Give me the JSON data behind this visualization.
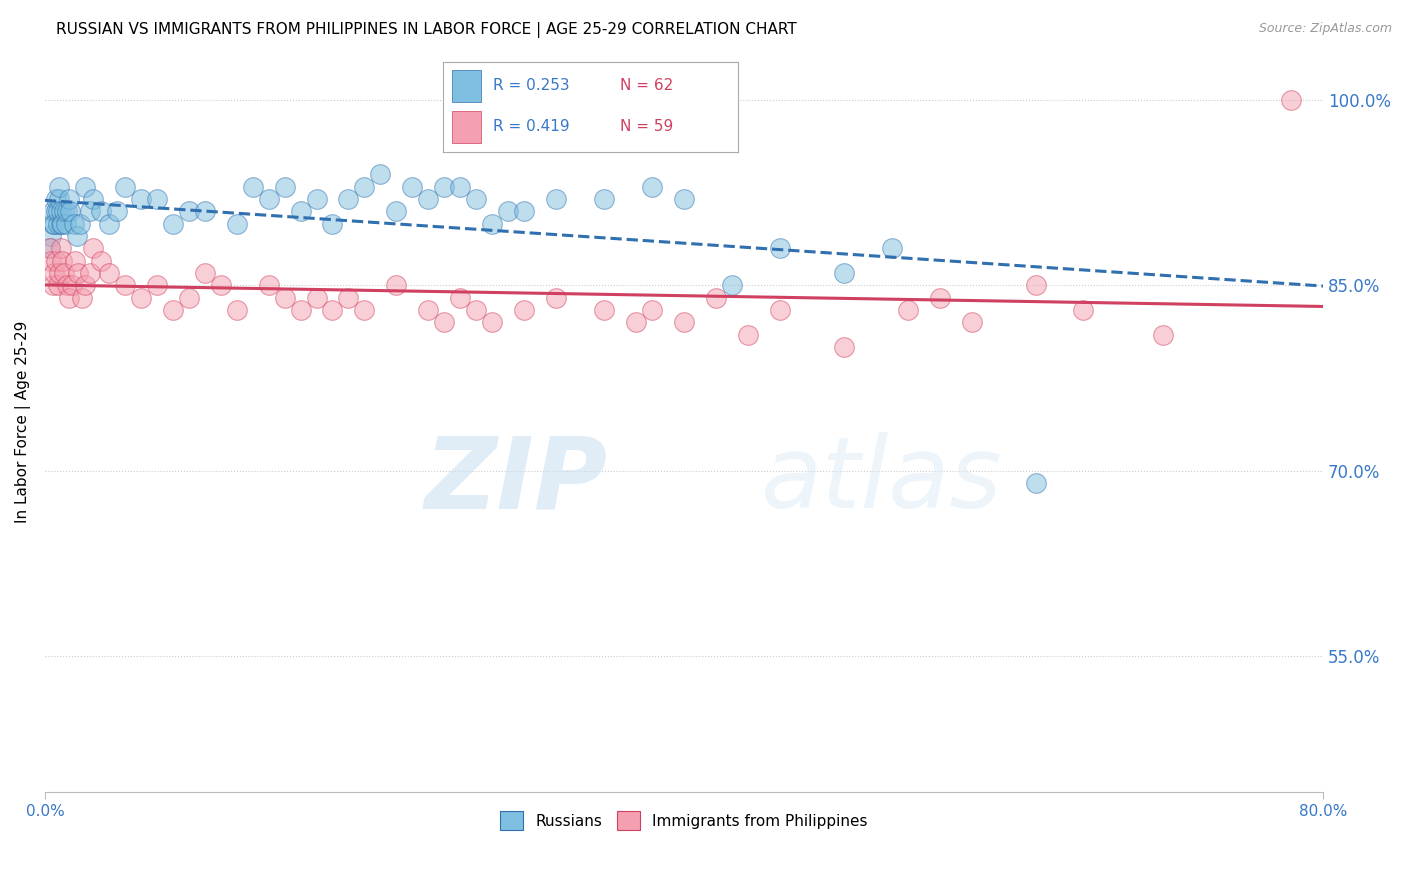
{
  "title": "RUSSIAN VS IMMIGRANTS FROM PHILIPPINES IN LABOR FORCE | AGE 25-29 CORRELATION CHART",
  "source": "Source: ZipAtlas.com",
  "ylabel": "In Labor Force | Age 25-29",
  "yticks": [
    55.0,
    70.0,
    85.0,
    100.0
  ],
  "ytick_labels": [
    "55.0%",
    "70.0%",
    "85.0%",
    "100.0%"
  ],
  "xmin": 0.0,
  "xmax": 80.0,
  "ymin": 44.0,
  "ymax": 104.0,
  "legend_r1": "R = 0.253",
  "legend_n1": "N = 62",
  "legend_r2": "R = 0.419",
  "legend_n2": "N = 59",
  "legend_label1": "Russians",
  "legend_label2": "Immigrants from Philippines",
  "blue_color": "#7fbfdf",
  "pink_color": "#f4a0b0",
  "blue_line_color": "#3070b0",
  "pink_line_color": "#d04060",
  "watermark_zip": "ZIP",
  "watermark_atlas": "atlas",
  "blue_x": [
    0.3,
    0.4,
    0.5,
    0.5,
    0.6,
    0.7,
    0.7,
    0.8,
    0.8,
    0.9,
    0.9,
    1.0,
    1.0,
    1.1,
    1.2,
    1.3,
    1.4,
    1.5,
    1.6,
    1.8,
    2.0,
    2.2,
    2.5,
    2.8,
    3.0,
    3.5,
    4.0,
    4.5,
    5.0,
    6.0,
    7.0,
    8.0,
    9.0,
    10.0,
    12.0,
    13.0,
    14.0,
    15.0,
    16.0,
    17.0,
    18.0,
    19.0,
    20.0,
    21.0,
    22.0,
    23.0,
    24.0,
    25.0,
    26.0,
    27.0,
    28.0,
    29.0,
    30.0,
    32.0,
    35.0,
    38.0,
    40.0,
    43.0,
    46.0,
    50.0,
    53.0,
    62.0
  ],
  "blue_y": [
    88,
    89,
    90,
    91,
    90,
    91,
    92,
    90,
    91,
    92,
    93,
    90,
    91,
    90,
    91,
    90,
    91,
    92,
    91,
    90,
    89,
    90,
    93,
    91,
    92,
    91,
    90,
    91,
    93,
    92,
    92,
    90,
    91,
    91,
    90,
    93,
    92,
    93,
    91,
    92,
    90,
    92,
    93,
    94,
    91,
    93,
    92,
    93,
    93,
    92,
    90,
    91,
    91,
    92,
    92,
    93,
    92,
    85,
    88,
    86,
    88,
    69
  ],
  "pink_x": [
    0.3,
    0.4,
    0.5,
    0.6,
    0.7,
    0.8,
    0.9,
    1.0,
    1.1,
    1.2,
    1.4,
    1.5,
    1.7,
    1.9,
    2.1,
    2.3,
    2.5,
    2.8,
    3.0,
    3.5,
    4.0,
    5.0,
    6.0,
    7.0,
    8.0,
    9.0,
    10.0,
    11.0,
    12.0,
    14.0,
    15.0,
    16.0,
    17.0,
    18.0,
    19.0,
    20.0,
    22.0,
    24.0,
    25.0,
    26.0,
    27.0,
    28.0,
    30.0,
    32.0,
    35.0,
    37.0,
    38.0,
    40.0,
    42.0,
    44.0,
    46.0,
    50.0,
    54.0,
    56.0,
    58.0,
    62.0,
    65.0,
    70.0,
    78.0
  ],
  "pink_y": [
    88,
    87,
    85,
    86,
    87,
    85,
    86,
    88,
    87,
    86,
    85,
    84,
    85,
    87,
    86,
    84,
    85,
    86,
    88,
    87,
    86,
    85,
    84,
    85,
    83,
    84,
    86,
    85,
    83,
    85,
    84,
    83,
    84,
    83,
    84,
    83,
    85,
    83,
    82,
    84,
    83,
    82,
    83,
    84,
    83,
    82,
    83,
    82,
    84,
    81,
    83,
    80,
    83,
    84,
    82,
    85,
    83,
    81,
    100
  ]
}
